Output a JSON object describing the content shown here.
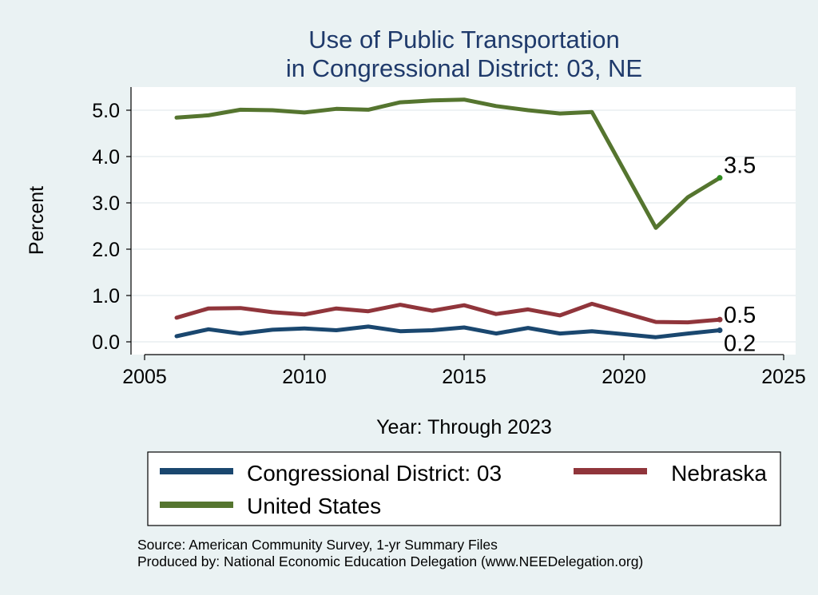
{
  "chart_data": {
    "type": "line",
    "title": [
      "Use of Public Transportation",
      "in Congressional District: 03, NE"
    ],
    "xlabel": "Year: Through 2023",
    "ylabel": "Percent",
    "xlim": [
      2005,
      2025
    ],
    "ylim": [
      0,
      5.5
    ],
    "x_ticks": [
      2005,
      2010,
      2015,
      2020,
      2025
    ],
    "y_ticks": [
      0,
      1,
      2,
      3,
      4,
      5
    ],
    "y_tick_labels": [
      "0.0",
      "1.0",
      "2.0",
      "3.0",
      "4.0",
      "5.0"
    ],
    "grid": true,
    "legend_position": "bottom",
    "x": [
      2006,
      2007,
      2008,
      2009,
      2010,
      2011,
      2012,
      2013,
      2014,
      2015,
      2016,
      2017,
      2018,
      2019,
      2021,
      2022,
      2023
    ],
    "series": [
      {
        "name": "Congressional District: 03",
        "color": "#1a476f",
        "values": [
          0.12,
          0.27,
          0.18,
          0.26,
          0.29,
          0.25,
          0.33,
          0.23,
          0.25,
          0.31,
          0.18,
          0.3,
          0.18,
          0.23,
          0.1,
          0.18,
          0.25
        ],
        "end_label": "0.2"
      },
      {
        "name": "Nebraska",
        "color": "#90353b",
        "values": [
          0.52,
          0.72,
          0.73,
          0.64,
          0.59,
          0.72,
          0.66,
          0.8,
          0.67,
          0.79,
          0.6,
          0.7,
          0.57,
          0.82,
          0.43,
          0.42,
          0.48
        ],
        "end_label": "0.5"
      },
      {
        "name": "United States",
        "color": "#55752f",
        "values": [
          4.84,
          4.89,
          5.01,
          5.0,
          4.95,
          5.03,
          5.01,
          5.17,
          5.21,
          5.23,
          5.09,
          5.0,
          4.93,
          4.96,
          2.46,
          3.12,
          3.54
        ],
        "end_label": "3.5"
      }
    ],
    "source_lines": [
      "Source: American Community Survey, 1-yr Summary Files",
      "Produced by: National Economic Education Delegation (www.NEEDelegation.org)"
    ]
  }
}
